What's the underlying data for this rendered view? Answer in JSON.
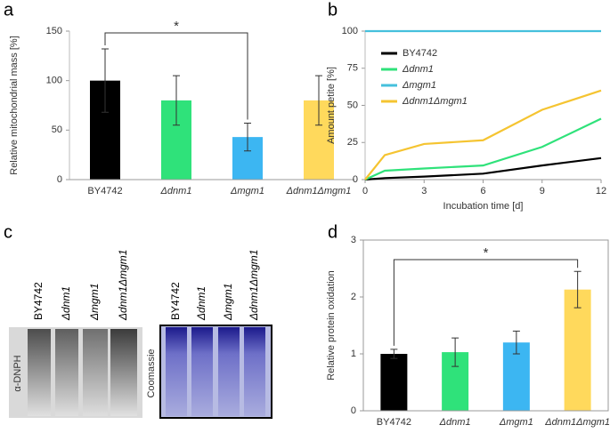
{
  "chart_data": [
    {
      "panel": "a",
      "type": "bar",
      "ylabel": "Relative mitochondrial mass [%]",
      "categories": [
        "BY4742",
        "Δdnm1",
        "Δmgm1",
        "Δdnm1Δmgm1"
      ],
      "values": [
        100,
        80,
        43,
        80
      ],
      "errors": [
        32,
        25,
        14,
        25
      ],
      "colors": [
        "#000000",
        "#2fe27a",
        "#3cb6f2",
        "#ffd95c"
      ],
      "ylim": [
        0,
        150
      ],
      "yticks": [
        0,
        50,
        100,
        150
      ],
      "annotation": "*"
    },
    {
      "panel": "b",
      "type": "line",
      "xlabel": "Incubation time [d]",
      "ylabel": "Amount petite [%]",
      "x": [
        0,
        1,
        3,
        6,
        9,
        12
      ],
      "series": [
        {
          "name": "BY4742",
          "color": "#000000",
          "values": [
            0,
            1,
            2,
            4,
            9.5,
            14.5
          ]
        },
        {
          "name": "Δdnm1",
          "color": "#2fe27a",
          "values": [
            0,
            6,
            7.5,
            9.5,
            22,
            41
          ]
        },
        {
          "name": "Δmgm1",
          "color": "#45c0dc",
          "values": [
            100,
            100,
            100,
            100,
            100,
            100
          ]
        },
        {
          "name": "Δdnm1Δmgm1",
          "color": "#f5c431",
          "values": [
            0,
            16.5,
            24,
            26.5,
            47,
            60
          ]
        }
      ],
      "xlim": [
        0,
        12
      ],
      "xticks": [
        0,
        3,
        6,
        9,
        12
      ],
      "ylim": [
        0,
        100
      ],
      "yticks": [
        0,
        25,
        50,
        75,
        100
      ]
    },
    {
      "panel": "d",
      "type": "bar",
      "ylabel": "Relative protein oxidation",
      "categories": [
        "BY4742",
        "Δdnm1",
        "Δmgm1",
        "Δdnm1Δmgm1"
      ],
      "values": [
        1.0,
        1.03,
        1.2,
        2.13
      ],
      "errors": [
        0.08,
        0.25,
        0.2,
        0.32
      ],
      "colors": [
        "#000000",
        "#2fe27a",
        "#3cb6f2",
        "#ffd95c"
      ],
      "ylim": [
        0,
        3
      ],
      "yticks": [
        0,
        1,
        2,
        3
      ],
      "annotation": "*"
    }
  ],
  "blots": {
    "panel": "c",
    "images": [
      {
        "label": "α-DNPH",
        "lanes": [
          "BY4742",
          "Δdnm1",
          "Δmgm1",
          "Δdnm1Δmgm1"
        ]
      },
      {
        "label": "Coomassie",
        "lanes": [
          "BY4742",
          "Δdnm1",
          "Δmgm1",
          "Δdnm1Δmgm1"
        ]
      }
    ]
  }
}
